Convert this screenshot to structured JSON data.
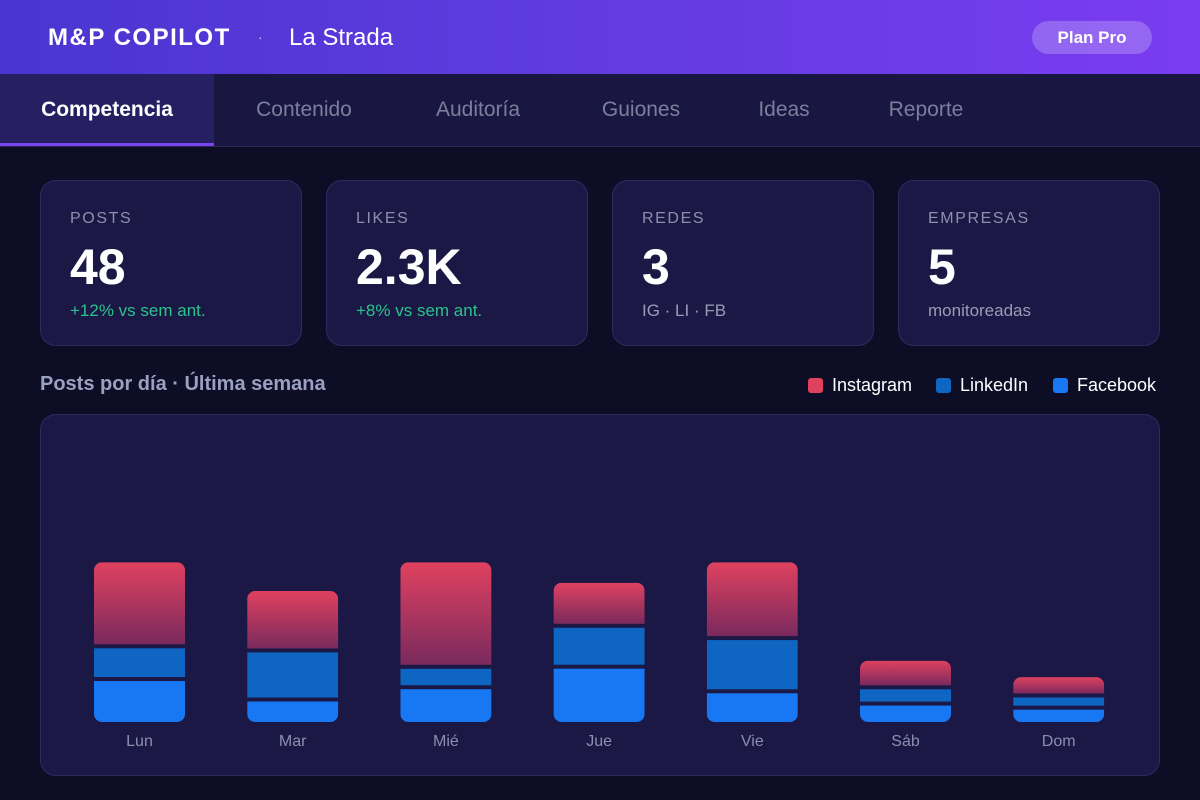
{
  "header": {
    "brand": "M&P COPILOT",
    "separator": "·",
    "client": "La Strada",
    "plan_button": "Plan Pro"
  },
  "tabs": [
    {
      "label": "Competencia",
      "active": true
    },
    {
      "label": "Contenido",
      "active": false
    },
    {
      "label": "Auditoría",
      "active": false
    },
    {
      "label": "Guiones",
      "active": false
    },
    {
      "label": "Ideas",
      "active": false
    },
    {
      "label": "Reporte",
      "active": false
    }
  ],
  "stats": [
    {
      "label": "POSTS",
      "value": "48",
      "sub": "+12% vs sem ant."
    },
    {
      "label": "LIKES",
      "value": "2.3K",
      "sub": "+8% vs sem ant."
    },
    {
      "label": "REDES",
      "value": "3",
      "sub": "IG · LI · FB"
    },
    {
      "label": "EMPRESAS",
      "value": "5",
      "sub": "monitoreadas"
    }
  ],
  "chart_section": {
    "title": "Posts por día · Última semana"
  },
  "colors": {
    "instagram": "#e0415f",
    "instagram_dark": "#7a2a5e",
    "linkedin": "#0e66c2",
    "facebook": "#1877f2",
    "accent": "#7a45f0",
    "positive": "#2bc38c"
  },
  "chart_data": {
    "type": "bar",
    "stacked": true,
    "categories": [
      "Lun",
      "Mar",
      "Mié",
      "Jue",
      "Vie",
      "Sáb",
      "Dom"
    ],
    "series": [
      {
        "name": "Facebook",
        "values": [
          10,
          5,
          8,
          13,
          7,
          4,
          3
        ]
      },
      {
        "name": "LinkedIn",
        "values": [
          7,
          11,
          4,
          9,
          12,
          3,
          2
        ]
      },
      {
        "name": "Instagram",
        "values": [
          20,
          14,
          25,
          10,
          18,
          6,
          4
        ]
      }
    ],
    "ylim": [
      0,
      40
    ],
    "legend_position": "top-right",
    "grid": false
  }
}
